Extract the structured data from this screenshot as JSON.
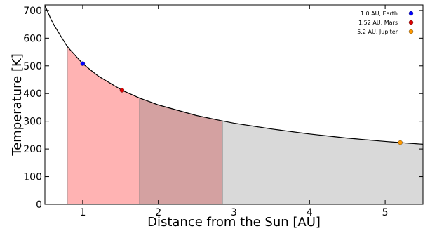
{
  "chart_data": {
    "type": "line",
    "title": "",
    "xlabel": "Distance from the Sun [AU]",
    "ylabel": "Temperature [K]",
    "xlim": [
      0.5,
      5.5
    ],
    "ylim": [
      0,
      720
    ],
    "x_ticks": [
      "1",
      "2",
      "3",
      "4",
      "5"
    ],
    "y_ticks": [
      "0",
      "100",
      "200",
      "300",
      "400",
      "500",
      "600",
      "700"
    ],
    "x_tick_values": [
      1,
      2,
      3,
      4,
      5
    ],
    "y_tick_values": [
      0,
      100,
      200,
      300,
      400,
      500,
      600,
      700
    ],
    "grid": false,
    "legend_position": "top-right",
    "curve": {
      "formula": "T = 508 / sqrt(d)",
      "x": [
        0.5,
        0.6,
        0.8,
        1.0,
        1.2,
        1.52,
        1.75,
        2.0,
        2.5,
        2.85,
        3.0,
        3.5,
        4.0,
        4.5,
        5.0,
        5.2,
        5.5
      ],
      "y": [
        718,
        656,
        568,
        508,
        464,
        412,
        384,
        359,
        321,
        301,
        293,
        272,
        254,
        239,
        227,
        223,
        217
      ],
      "color": "#000000"
    },
    "regions": [
      {
        "x_start": 0.8,
        "x_end": 1.75,
        "color": "#ffb3b3"
      },
      {
        "x_start": 1.75,
        "x_end": 2.85,
        "color": "#d4a1a1"
      },
      {
        "x_start": 2.85,
        "x_end": 5.5,
        "color": "#d9d9d9"
      }
    ],
    "series": [
      {
        "name": "1.0 AU, Earth",
        "x": [
          1.0
        ],
        "y": [
          508
        ],
        "color": "#0000ff"
      },
      {
        "name": "1.52 AU, Mars",
        "x": [
          1.52
        ],
        "y": [
          412
        ],
        "color": "#dd0000"
      },
      {
        "name": "5.2 AU, Jupiter",
        "x": [
          5.2
        ],
        "y": [
          223
        ],
        "color": "#ff9900"
      }
    ]
  }
}
